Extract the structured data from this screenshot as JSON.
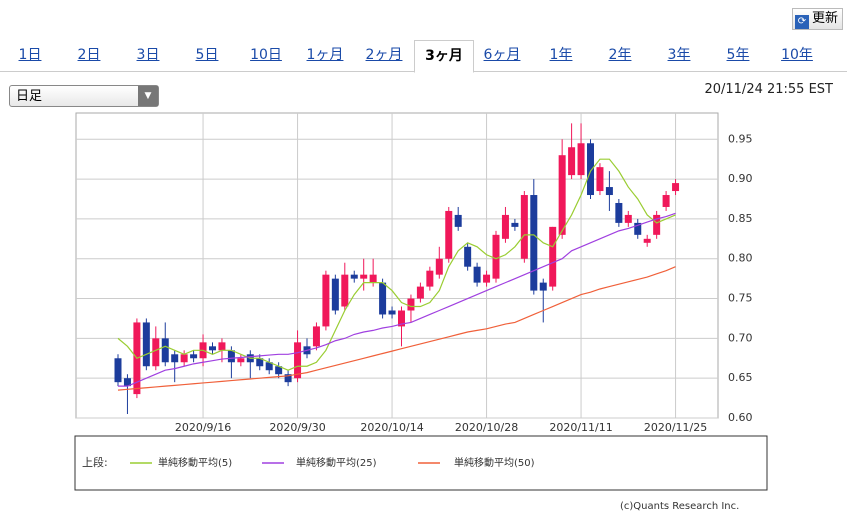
{
  "ui": {
    "refresh": "更新",
    "tabs": [
      "1日",
      "2日",
      "3日",
      "5日",
      "10日",
      "1ヶ月",
      "2ヶ月",
      "3ヶ月",
      "6ヶ月",
      "1年",
      "2年",
      "3年",
      "5年",
      "10年"
    ],
    "selected_tab": 7,
    "dropdown": "日足",
    "timestamp": "20/11/24 21:55 EST",
    "copyright": "(c)Quants Research Inc."
  },
  "chart_data": {
    "type": "candlestick",
    "categories": [
      null,
      null,
      null,
      null,
      null,
      null,
      null,
      null,
      null,
      "2020/9/16",
      null,
      null,
      null,
      null,
      null,
      null,
      null,
      null,
      null,
      "2020/9/30",
      null,
      null,
      null,
      null,
      null,
      null,
      null,
      null,
      null,
      "2020/10/14",
      null,
      null,
      null,
      null,
      null,
      null,
      null,
      null,
      null,
      "2020/10/28",
      null,
      null,
      null,
      null,
      null,
      null,
      null,
      null,
      null,
      "2020/11/11",
      null,
      null,
      null,
      null,
      null,
      null,
      null,
      null,
      null,
      "2020/11/25"
    ],
    "open": [
      0.675,
      0.65,
      0.63,
      0.72,
      0.665,
      0.7,
      0.68,
      0.67,
      0.68,
      0.675,
      0.69,
      0.685,
      0.685,
      0.67,
      0.68,
      0.675,
      0.67,
      0.665,
      0.655,
      0.65,
      0.69,
      0.69,
      0.715,
      0.775,
      0.74,
      0.78,
      0.775,
      0.77,
      0.77,
      0.735,
      0.715,
      0.735,
      0.75,
      0.765,
      0.78,
      0.8,
      0.855,
      0.815,
      0.79,
      0.77,
      0.775,
      0.825,
      0.845,
      0.8,
      0.88,
      0.77,
      0.765,
      0.83,
      0.905,
      0.905,
      0.945,
      0.885,
      0.89,
      0.87,
      0.845,
      0.845,
      0.82,
      0.83,
      0.865,
      0.885
    ],
    "high": [
      0.68,
      0.655,
      0.725,
      0.725,
      0.715,
      0.72,
      0.685,
      0.685,
      0.685,
      0.705,
      0.695,
      0.7,
      0.69,
      0.68,
      0.685,
      0.68,
      0.675,
      0.67,
      0.66,
      0.71,
      0.7,
      0.72,
      0.785,
      0.78,
      0.795,
      0.785,
      0.8,
      0.8,
      0.775,
      0.74,
      0.74,
      0.755,
      0.77,
      0.79,
      0.815,
      0.865,
      0.865,
      0.82,
      0.795,
      0.785,
      0.835,
      0.865,
      0.85,
      0.885,
      0.9,
      0.775,
      0.84,
      0.95,
      0.97,
      0.97,
      0.95,
      0.92,
      0.91,
      0.875,
      0.86,
      0.85,
      0.83,
      0.86,
      0.885,
      0.9
    ],
    "low": [
      0.64,
      0.605,
      0.625,
      0.66,
      0.66,
      0.665,
      0.645,
      0.665,
      0.67,
      0.665,
      0.68,
      0.67,
      0.65,
      0.665,
      0.65,
      0.66,
      0.655,
      0.65,
      0.64,
      0.645,
      0.675,
      0.685,
      0.71,
      0.73,
      0.735,
      0.77,
      0.76,
      0.765,
      0.725,
      0.725,
      0.69,
      0.72,
      0.745,
      0.76,
      0.775,
      0.795,
      0.835,
      0.785,
      0.765,
      0.765,
      0.77,
      0.82,
      0.835,
      0.795,
      0.755,
      0.72,
      0.76,
      0.825,
      0.9,
      0.9,
      0.875,
      0.88,
      0.86,
      0.84,
      0.84,
      0.825,
      0.815,
      0.825,
      0.86,
      0.88
    ],
    "close": [
      0.645,
      0.64,
      0.72,
      0.665,
      0.7,
      0.67,
      0.67,
      0.68,
      0.675,
      0.695,
      0.685,
      0.695,
      0.67,
      0.675,
      0.67,
      0.665,
      0.66,
      0.655,
      0.645,
      0.695,
      0.68,
      0.715,
      0.78,
      0.735,
      0.78,
      0.775,
      0.78,
      0.78,
      0.73,
      0.73,
      0.735,
      0.75,
      0.765,
      0.785,
      0.8,
      0.86,
      0.84,
      0.79,
      0.77,
      0.78,
      0.83,
      0.855,
      0.84,
      0.88,
      0.76,
      0.76,
      0.84,
      0.93,
      0.94,
      0.945,
      0.88,
      0.915,
      0.88,
      0.845,
      0.855,
      0.83,
      0.825,
      0.855,
      0.88,
      0.895
    ],
    "up_color": "#f0185a",
    "down_color": "#1c3c9c",
    "legend_label": "上段:",
    "series": [
      {
        "name": "単純移動平均(5)",
        "color": "#9acd32",
        "values": [
          0.7,
          0.69,
          0.675,
          0.68,
          0.685,
          0.69,
          0.685,
          0.68,
          0.685,
          0.685,
          0.68,
          0.685,
          0.685,
          0.68,
          0.675,
          0.675,
          0.67,
          0.665,
          0.66,
          0.665,
          0.665,
          0.67,
          0.685,
          0.71,
          0.735,
          0.755,
          0.77,
          0.77,
          0.77,
          0.76,
          0.745,
          0.74,
          0.74,
          0.745,
          0.76,
          0.79,
          0.81,
          0.82,
          0.815,
          0.805,
          0.8,
          0.805,
          0.815,
          0.83,
          0.83,
          0.82,
          0.815,
          0.835,
          0.855,
          0.88,
          0.91,
          0.925,
          0.925,
          0.91,
          0.89,
          0.875,
          0.855,
          0.845,
          0.85,
          0.855
        ]
      },
      {
        "name": "単純移動平均(25)",
        "color": "#a040e0",
        "values": [
          0.64,
          0.64,
          0.645,
          0.65,
          0.655,
          0.66,
          0.662,
          0.665,
          0.668,
          0.67,
          0.672,
          0.674,
          0.675,
          0.676,
          0.677,
          0.678,
          0.679,
          0.68,
          0.68,
          0.682,
          0.685,
          0.688,
          0.692,
          0.697,
          0.7,
          0.705,
          0.708,
          0.71,
          0.713,
          0.715,
          0.718,
          0.72,
          0.725,
          0.73,
          0.735,
          0.74,
          0.745,
          0.75,
          0.755,
          0.76,
          0.765,
          0.77,
          0.775,
          0.78,
          0.785,
          0.79,
          0.795,
          0.8,
          0.81,
          0.815,
          0.82,
          0.825,
          0.83,
          0.835,
          0.838,
          0.842,
          0.846,
          0.85,
          0.853,
          0.857
        ]
      },
      {
        "name": "単純移動平均(50)",
        "color": "#f0603a",
        "values": [
          0.635,
          0.636,
          0.637,
          0.638,
          0.639,
          0.64,
          0.641,
          0.642,
          0.643,
          0.644,
          0.645,
          0.646,
          0.647,
          0.648,
          0.649,
          0.65,
          0.651,
          0.652,
          0.653,
          0.655,
          0.657,
          0.66,
          0.663,
          0.666,
          0.669,
          0.672,
          0.675,
          0.678,
          0.681,
          0.684,
          0.687,
          0.69,
          0.693,
          0.696,
          0.699,
          0.702,
          0.705,
          0.708,
          0.71,
          0.712,
          0.715,
          0.718,
          0.72,
          0.725,
          0.73,
          0.735,
          0.74,
          0.745,
          0.75,
          0.755,
          0.758,
          0.762,
          0.765,
          0.768,
          0.771,
          0.774,
          0.777,
          0.781,
          0.785,
          0.79
        ]
      }
    ],
    "ylim": [
      0.6,
      0.983
    ],
    "yticks": [
      {
        "value": 0.6,
        "label": "0.60"
      },
      0.65,
      {
        "value": 0.7,
        "label": "0.70"
      },
      0.75,
      {
        "value": 0.8,
        "label": "0.80"
      },
      0.85,
      {
        "value": 0.9,
        "label": "0.90"
      },
      0.95
    ],
    "grid": true
  }
}
